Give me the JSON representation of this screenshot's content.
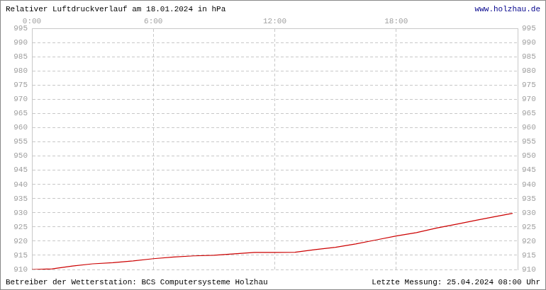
{
  "chart_data": {
    "type": "line",
    "title": "Relativer Luftdruckverlauf am 18.01.2024 in hPa",
    "annotations": [
      "www.holzhau.de",
      "Betreiber der Wetterstation: BCS Computersysteme Holzhau",
      "Letzte Messung: 25.04.2024 08:00 Uhr"
    ],
    "x": [
      0,
      1,
      2,
      3,
      4,
      5,
      6,
      7,
      8,
      9,
      10,
      11,
      12,
      13,
      14,
      15,
      16,
      17,
      18,
      19,
      20,
      21,
      22,
      23,
      23.75
    ],
    "values": [
      910.0,
      910.2,
      911.2,
      912.0,
      912.4,
      913.0,
      913.8,
      914.4,
      914.8,
      915.0,
      915.5,
      916.0,
      916.0,
      916.1,
      917.0,
      917.8,
      919.0,
      920.4,
      921.8,
      923.0,
      924.6,
      926.0,
      927.4,
      928.8,
      929.8
    ],
    "color": "#cc0000",
    "xlim": [
      0,
      24
    ],
    "xticks": [
      {
        "value": 0,
        "label": "0:00"
      },
      {
        "value": 6,
        "label": "6:00"
      },
      {
        "value": 12,
        "label": "12:00"
      },
      {
        "value": 18,
        "label": "18:00"
      }
    ],
    "ylim": [
      910,
      995
    ],
    "yticks": [
      910,
      915,
      920,
      925,
      930,
      935,
      940,
      945,
      950,
      955,
      960,
      965,
      970,
      975,
      980,
      985,
      990,
      995
    ],
    "grid": true
  }
}
